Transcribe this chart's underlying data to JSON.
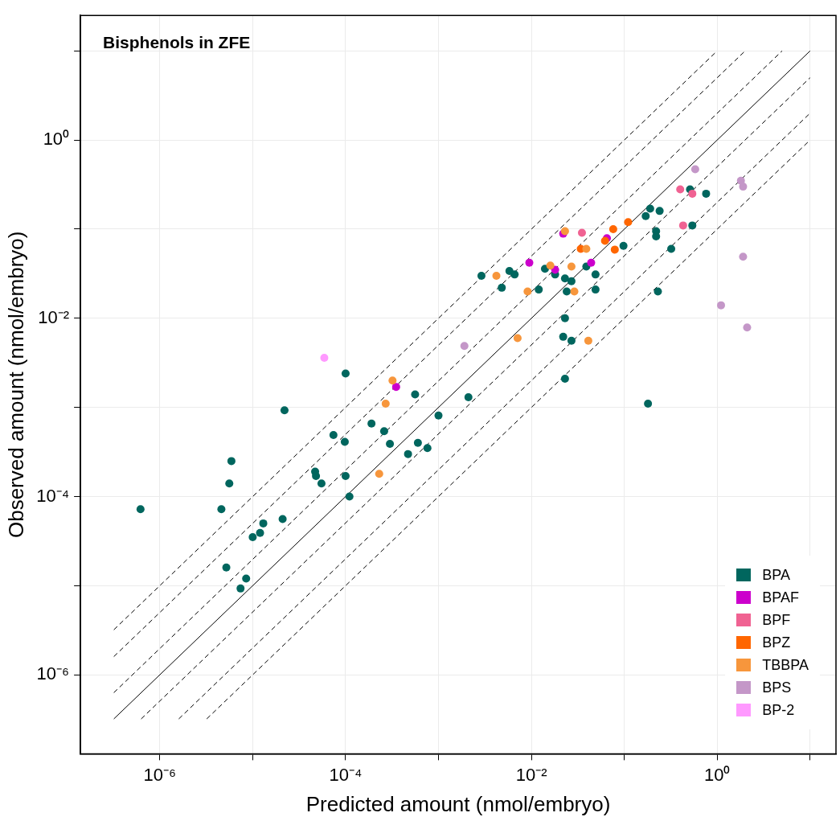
{
  "chart_data": {
    "type": "scatter",
    "title": "Bisphenols in ZFE",
    "xlabel": "Predicted amount (nmol/embryo)",
    "ylabel": "Observed amount (nmol/embryo)",
    "log": "xy",
    "grid": true,
    "legend": "bottom right",
    "marker": "circle",
    "xlim": [
      1.4e-07,
      19
    ],
    "ylim": [
      1.3e-07,
      25
    ],
    "xticks": [
      {
        "value": 1e-06,
        "label": "10⁻⁶"
      },
      {
        "value": 1e-05,
        "label": null
      },
      {
        "value": 0.0001,
        "label": "10⁻⁴"
      },
      {
        "value": 0.001,
        "label": null
      },
      {
        "value": 0.01,
        "label": "10⁻²"
      },
      {
        "value": 0.1,
        "label": null
      },
      {
        "value": 1,
        "label": "10⁰"
      },
      {
        "value": 10,
        "label": null
      }
    ],
    "yticks": [
      {
        "value": 1e-06,
        "label": "10⁻⁶"
      },
      {
        "value": 1e-05,
        "label": null
      },
      {
        "value": 0.0001,
        "label": "10⁻⁴"
      },
      {
        "value": 0.001,
        "label": null
      },
      {
        "value": 0.01,
        "label": "10⁻²"
      },
      {
        "value": 0.1,
        "label": null
      },
      {
        "value": 1,
        "label": "10⁰"
      },
      {
        "value": 10,
        "label": null
      }
    ],
    "series": [
      {
        "name": "BPA",
        "color": "#00665e",
        "x": [
          0.0001,
          0.00056,
          0.0021,
          2.2e-05,
          0.001,
          0.00019,
          0.00026,
          7.4e-05,
          9.8e-05,
          0.0003,
          0.0006,
          0.00076,
          0.00047,
          5.9e-06,
          5.6e-06,
          4.7e-05,
          4.8e-05,
          5.5e-05,
          0.0001,
          0.00011,
          6.2e-07,
          4.6e-06,
          2.1e-05,
          1.3e-05,
          1.2e-05,
          1e-05,
          5.2e-06,
          8.5e-06,
          7.4e-06,
          0.51,
          0.76,
          0.19,
          0.24,
          0.17,
          0.22,
          0.22,
          0.54,
          0.098,
          0.32,
          0.0029,
          0.0058,
          0.0066,
          0.0048,
          0.014,
          0.018,
          0.023,
          0.027,
          0.039,
          0.049,
          0.012,
          0.024,
          0.049,
          0.23,
          0.023,
          0.022,
          0.027,
          0.023,
          0.18
        ],
        "values": [
          0.0024,
          0.0014,
          0.0013,
          0.00093,
          0.00081,
          0.00066,
          0.00054,
          0.00049,
          0.00041,
          0.00039,
          0.0004,
          0.00035,
          0.0003,
          0.00025,
          0.00014,
          0.00019,
          0.00017,
          0.00014,
          0.00017,
          0.0001,
          7.2e-05,
          7.2e-05,
          5.6e-05,
          5e-05,
          3.9e-05,
          3.5e-05,
          1.6e-05,
          1.2e-05,
          9.3e-06,
          0.28,
          0.25,
          0.17,
          0.16,
          0.14,
          0.095,
          0.083,
          0.11,
          0.065,
          0.06,
          0.03,
          0.034,
          0.031,
          0.022,
          0.036,
          0.031,
          0.028,
          0.026,
          0.038,
          0.031,
          0.021,
          0.02,
          0.021,
          0.02,
          0.01,
          0.0062,
          0.0056,
          0.0021,
          0.0011
        ]
      },
      {
        "name": "BPAF",
        "color": "#cc00cc",
        "x": [
          0.00035,
          0.022,
          0.065,
          0.0095,
          0.018,
          0.044
        ],
        "values": [
          0.0017,
          0.089,
          0.079,
          0.042,
          0.035,
          0.042
        ]
      },
      {
        "name": "BPF",
        "color": "#f06292",
        "x": [
          0.4,
          0.54,
          0.43,
          0.035
        ],
        "values": [
          0.28,
          0.25,
          0.11,
          0.091
        ]
      },
      {
        "name": "BPZ",
        "color": "#ff6600",
        "x": [
          0.076,
          0.11,
          0.062,
          0.034,
          0.079
        ],
        "values": [
          0.1,
          0.12,
          0.074,
          0.06,
          0.059
        ]
      },
      {
        "name": "TBBPA",
        "color": "#f7963c",
        "x": [
          0.00032,
          0.00027,
          0.00023,
          0.023,
          0.039,
          0.0042,
          0.016,
          0.027,
          0.0091,
          0.029,
          0.0071,
          0.041
        ],
        "values": [
          0.002,
          0.0011,
          0.00018,
          0.095,
          0.06,
          0.03,
          0.039,
          0.038,
          0.02,
          0.02,
          0.006,
          0.0056
        ]
      },
      {
        "name": "BPS",
        "color": "#c497c8",
        "x": [
          0.0019,
          0.58,
          1.8,
          1.9,
          1.9,
          1.1,
          2.1
        ],
        "values": [
          0.0049,
          0.47,
          0.35,
          0.3,
          0.049,
          0.014,
          0.0079
        ]
      },
      {
        "name": "BP-2",
        "color": "#ff99ff",
        "x": [
          5.9e-05
        ],
        "values": [
          0.0036
        ]
      },
      {
        "type": "line",
        "marker": "none",
        "color": "#000000",
        "line_style": "solid",
        "x": [
          3.2e-07,
          10
        ],
        "values": [
          3.2e-07,
          10
        ]
      },
      {
        "type": "line",
        "marker": "none",
        "color": "#000000",
        "line_style": "dashed",
        "x": [
          3.2e-07,
          5
        ],
        "values": [
          6.3e-07,
          10
        ]
      },
      {
        "type": "line",
        "marker": "none",
        "color": "#000000",
        "line_style": "dashed",
        "x": [
          3.2e-07,
          2
        ],
        "values": [
          1.6e-06,
          10
        ]
      },
      {
        "type": "line",
        "marker": "none",
        "color": "#000000",
        "line_style": "dashed",
        "x": [
          3.2e-07,
          1
        ],
        "values": [
          3.2e-06,
          10
        ]
      },
      {
        "type": "line",
        "marker": "none",
        "color": "#000000",
        "line_style": "dashed",
        "x": [
          6.3e-07,
          10
        ],
        "values": [
          3.2e-07,
          5
        ]
      },
      {
        "type": "line",
        "marker": "none",
        "color": "#000000",
        "line_style": "dashed",
        "x": [
          1.6e-06,
          10
        ],
        "values": [
          3.2e-07,
          2
        ]
      },
      {
        "type": "line",
        "marker": "none",
        "color": "#000000",
        "line_style": "dashed",
        "x": [
          3.2e-06,
          10
        ],
        "values": [
          3.2e-07,
          1
        ]
      }
    ]
  }
}
